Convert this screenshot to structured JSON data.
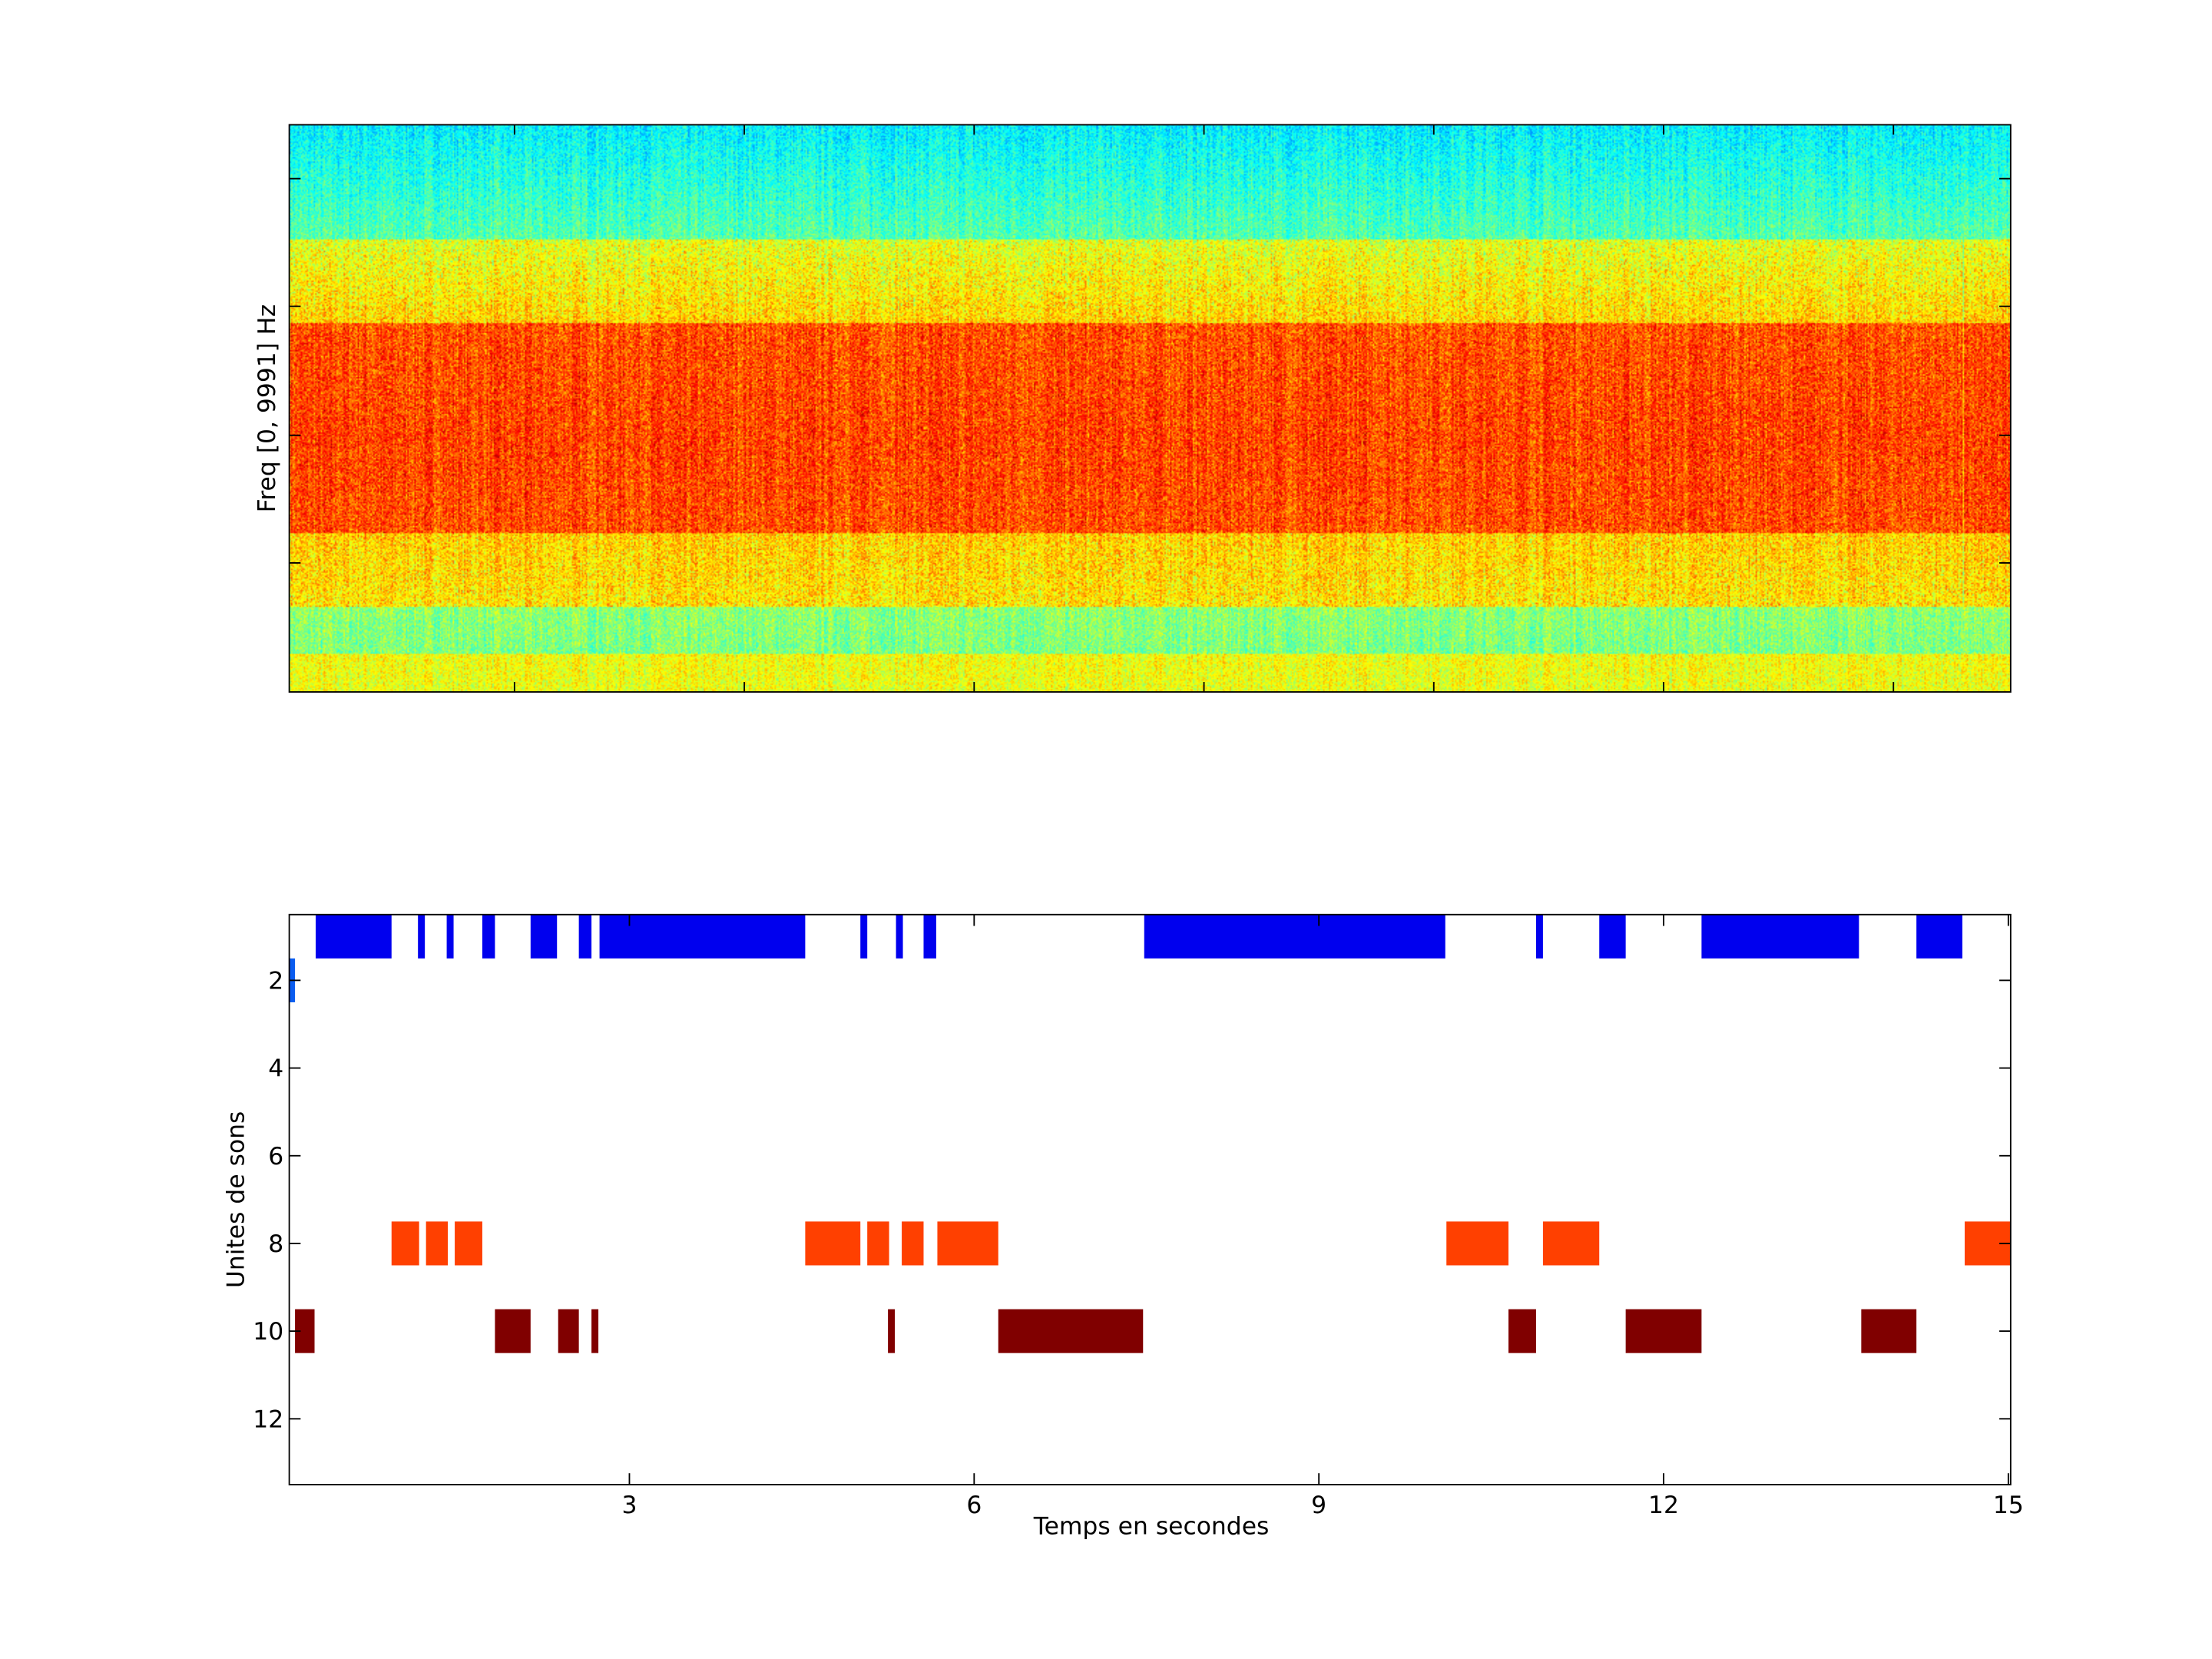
{
  "chart_data": [
    {
      "type": "heatmap",
      "title": "",
      "xlabel": "",
      "ylabel": "Freq [0, 9991] Hz",
      "colormap": "jet",
      "xlim": [
        0.04,
        15.02
      ],
      "ylim_hz": [
        0,
        9991
      ],
      "x_tick_labels_shown": false,
      "y_tick_labels_shown": false
    },
    {
      "type": "bar",
      "subtype": "segment-raster",
      "xlabel": "Temps en secondes",
      "ylabel": "Unites de sons",
      "xlim": [
        0.04,
        15.02
      ],
      "ylim": [
        0.5,
        13.5
      ],
      "y_reversed": true,
      "x_ticks": [
        3,
        6,
        9,
        12,
        15
      ],
      "x_tick_labels": [
        "3",
        "6",
        "9",
        "12",
        "15"
      ],
      "y_ticks": [
        2,
        4,
        6,
        8,
        10,
        12
      ],
      "y_tick_labels": [
        "2",
        "4",
        "6",
        "8",
        "10",
        "12"
      ],
      "series": [
        {
          "unit": 1,
          "color": "#0000ee",
          "segments": [
            [
              0.27,
              0.93
            ],
            [
              1.16,
              1.22
            ],
            [
              1.41,
              1.47
            ],
            [
              1.72,
              1.83
            ],
            [
              2.14,
              2.37
            ],
            [
              2.56,
              2.67
            ],
            [
              2.74,
              4.53
            ],
            [
              5.01,
              5.07
            ],
            [
              5.32,
              5.38
            ],
            [
              5.56,
              5.67
            ],
            [
              7.48,
              10.1
            ],
            [
              10.89,
              10.95
            ],
            [
              11.44,
              11.67
            ],
            [
              12.33,
              13.7
            ],
            [
              14.2,
              14.6
            ]
          ]
        },
        {
          "unit": 2,
          "color": "#0a5cf0",
          "segments": [
            [
              0.04,
              0.09
            ]
          ]
        },
        {
          "unit": 8,
          "color": "#ff4000",
          "segments": [
            [
              0.93,
              1.17
            ],
            [
              1.23,
              1.42
            ],
            [
              1.48,
              1.72
            ],
            [
              4.53,
              5.01
            ],
            [
              5.07,
              5.26
            ],
            [
              5.37,
              5.56
            ],
            [
              5.68,
              6.21
            ],
            [
              10.11,
              10.65
            ],
            [
              10.95,
              11.44
            ],
            [
              14.62,
              15.02
            ]
          ]
        },
        {
          "unit": 10,
          "color": "#800000",
          "segments": [
            [
              0.09,
              0.26
            ],
            [
              1.83,
              2.14
            ],
            [
              2.38,
              2.56
            ],
            [
              2.67,
              2.73
            ],
            [
              5.25,
              5.31
            ],
            [
              6.21,
              7.47
            ],
            [
              10.65,
              10.89
            ],
            [
              11.67,
              12.33
            ],
            [
              13.72,
              14.2
            ]
          ]
        }
      ]
    }
  ]
}
